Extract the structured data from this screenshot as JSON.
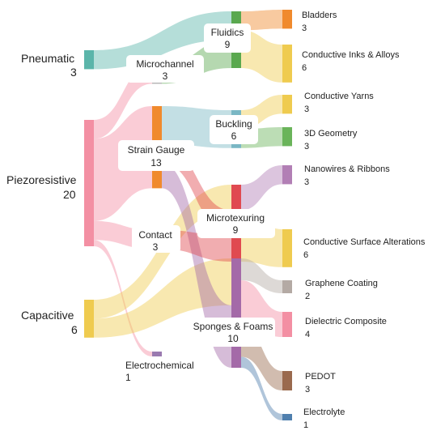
{
  "diagram": {
    "sources": [
      {
        "id": "pneumatic",
        "name": "Pneumatic",
        "value": "3",
        "color": "#5bb5aa"
      },
      {
        "id": "piezoresistive",
        "name": "Piezoresistive",
        "value": "20",
        "color": "#f38fa3"
      },
      {
        "id": "capacitive",
        "name": "Capacitive",
        "value": "6",
        "color": "#efcb4f"
      }
    ],
    "mechanisms": [
      {
        "id": "fluidics",
        "name": "Fluidics",
        "value": "9",
        "color": "#5aa84f"
      },
      {
        "id": "microchannel",
        "name": "Microchannel",
        "value": "3",
        "color": "#b4b4b4"
      },
      {
        "id": "straingauge",
        "name": "Strain Gauge",
        "value": "13",
        "color": "#f08a2d"
      },
      {
        "id": "buckling",
        "name": "Buckling",
        "value": "6",
        "color": "#7ab7c4"
      },
      {
        "id": "contact",
        "name": "Contact",
        "value": "3",
        "color": "#8a8a8a"
      },
      {
        "id": "microtexturing",
        "name": "Microtexuring",
        "value": "9",
        "color": "#e04a50"
      },
      {
        "id": "sponges",
        "name": "Sponges & Foams",
        "value": "10",
        "color": "#a46aa8"
      },
      {
        "id": "electrochemical",
        "name": "Electrochemical",
        "value": "1",
        "color": "#9a7ab0"
      }
    ],
    "materials": [
      {
        "id": "bladders",
        "name": "Bladders",
        "value": "3",
        "color": "#f08a2d"
      },
      {
        "id": "inks",
        "name": "Conductive Inks & Alloys",
        "value": "6",
        "color": "#efcb4f"
      },
      {
        "id": "yarns",
        "name": "Conductive Yarns",
        "value": "3",
        "color": "#efcb4f"
      },
      {
        "id": "geometry",
        "name": "3D Geometry",
        "value": "3",
        "color": "#6ab45a"
      },
      {
        "id": "nanowires",
        "name": "Nanowires & Ribbons",
        "value": "3",
        "color": "#b27fb5"
      },
      {
        "id": "surface",
        "name": "Conductive Surface Alterations",
        "value": "6",
        "color": "#efcb4f"
      },
      {
        "id": "graphene",
        "name": "Graphene Coating",
        "value": "2",
        "color": "#b4aaa4"
      },
      {
        "id": "dielectric",
        "name": "Dielectric Composite",
        "value": "4",
        "color": "#f38fa3"
      },
      {
        "id": "pedot",
        "name": "PEDOT",
        "value": "3",
        "color": "#9a6a4e"
      },
      {
        "id": "electrolyte",
        "name": "Electrolyte",
        "value": "1",
        "color": "#4f7fae"
      }
    ],
    "links": [
      {
        "from": "pneumatic",
        "to": "fluidics",
        "value": 3
      },
      {
        "from": "piezoresistive",
        "to": "microchannel",
        "value": 3
      },
      {
        "from": "piezoresistive",
        "to": "straingauge",
        "value": 13
      },
      {
        "from": "piezoresistive",
        "to": "contact",
        "value": 3
      },
      {
        "from": "piezoresistive",
        "to": "electrochemical",
        "value": 1
      },
      {
        "from": "capacitive",
        "to": "microtexturing",
        "value": 3
      },
      {
        "from": "capacitive",
        "to": "sponges",
        "value": 3
      },
      {
        "from": "microchannel",
        "to": "fluidics",
        "value": 3
      },
      {
        "from": "straingauge",
        "to": "buckling",
        "value": 6
      },
      {
        "from": "straingauge",
        "to": "microtexturing",
        "value": 3
      },
      {
        "from": "straingauge",
        "to": "sponges",
        "value": 4
      },
      {
        "from": "contact",
        "to": "microtexturing",
        "value": 3
      },
      {
        "from": "fluidics",
        "to": "bladders",
        "value": 3
      },
      {
        "from": "fluidics",
        "to": "inks",
        "value": 6
      },
      {
        "from": "buckling",
        "to": "yarns",
        "value": 3
      },
      {
        "from": "buckling",
        "to": "geometry",
        "value": 3
      },
      {
        "from": "microtexturing",
        "to": "nanowires",
        "value": 3
      },
      {
        "from": "microtexturing",
        "to": "surface",
        "value": 6
      },
      {
        "from": "sponges",
        "to": "graphene",
        "value": 2
      },
      {
        "from": "sponges",
        "to": "dielectric",
        "value": 4
      },
      {
        "from": "sponges",
        "to": "pedot",
        "value": 3
      },
      {
        "from": "sponges",
        "to": "electrolyte",
        "value": 1
      }
    ]
  }
}
